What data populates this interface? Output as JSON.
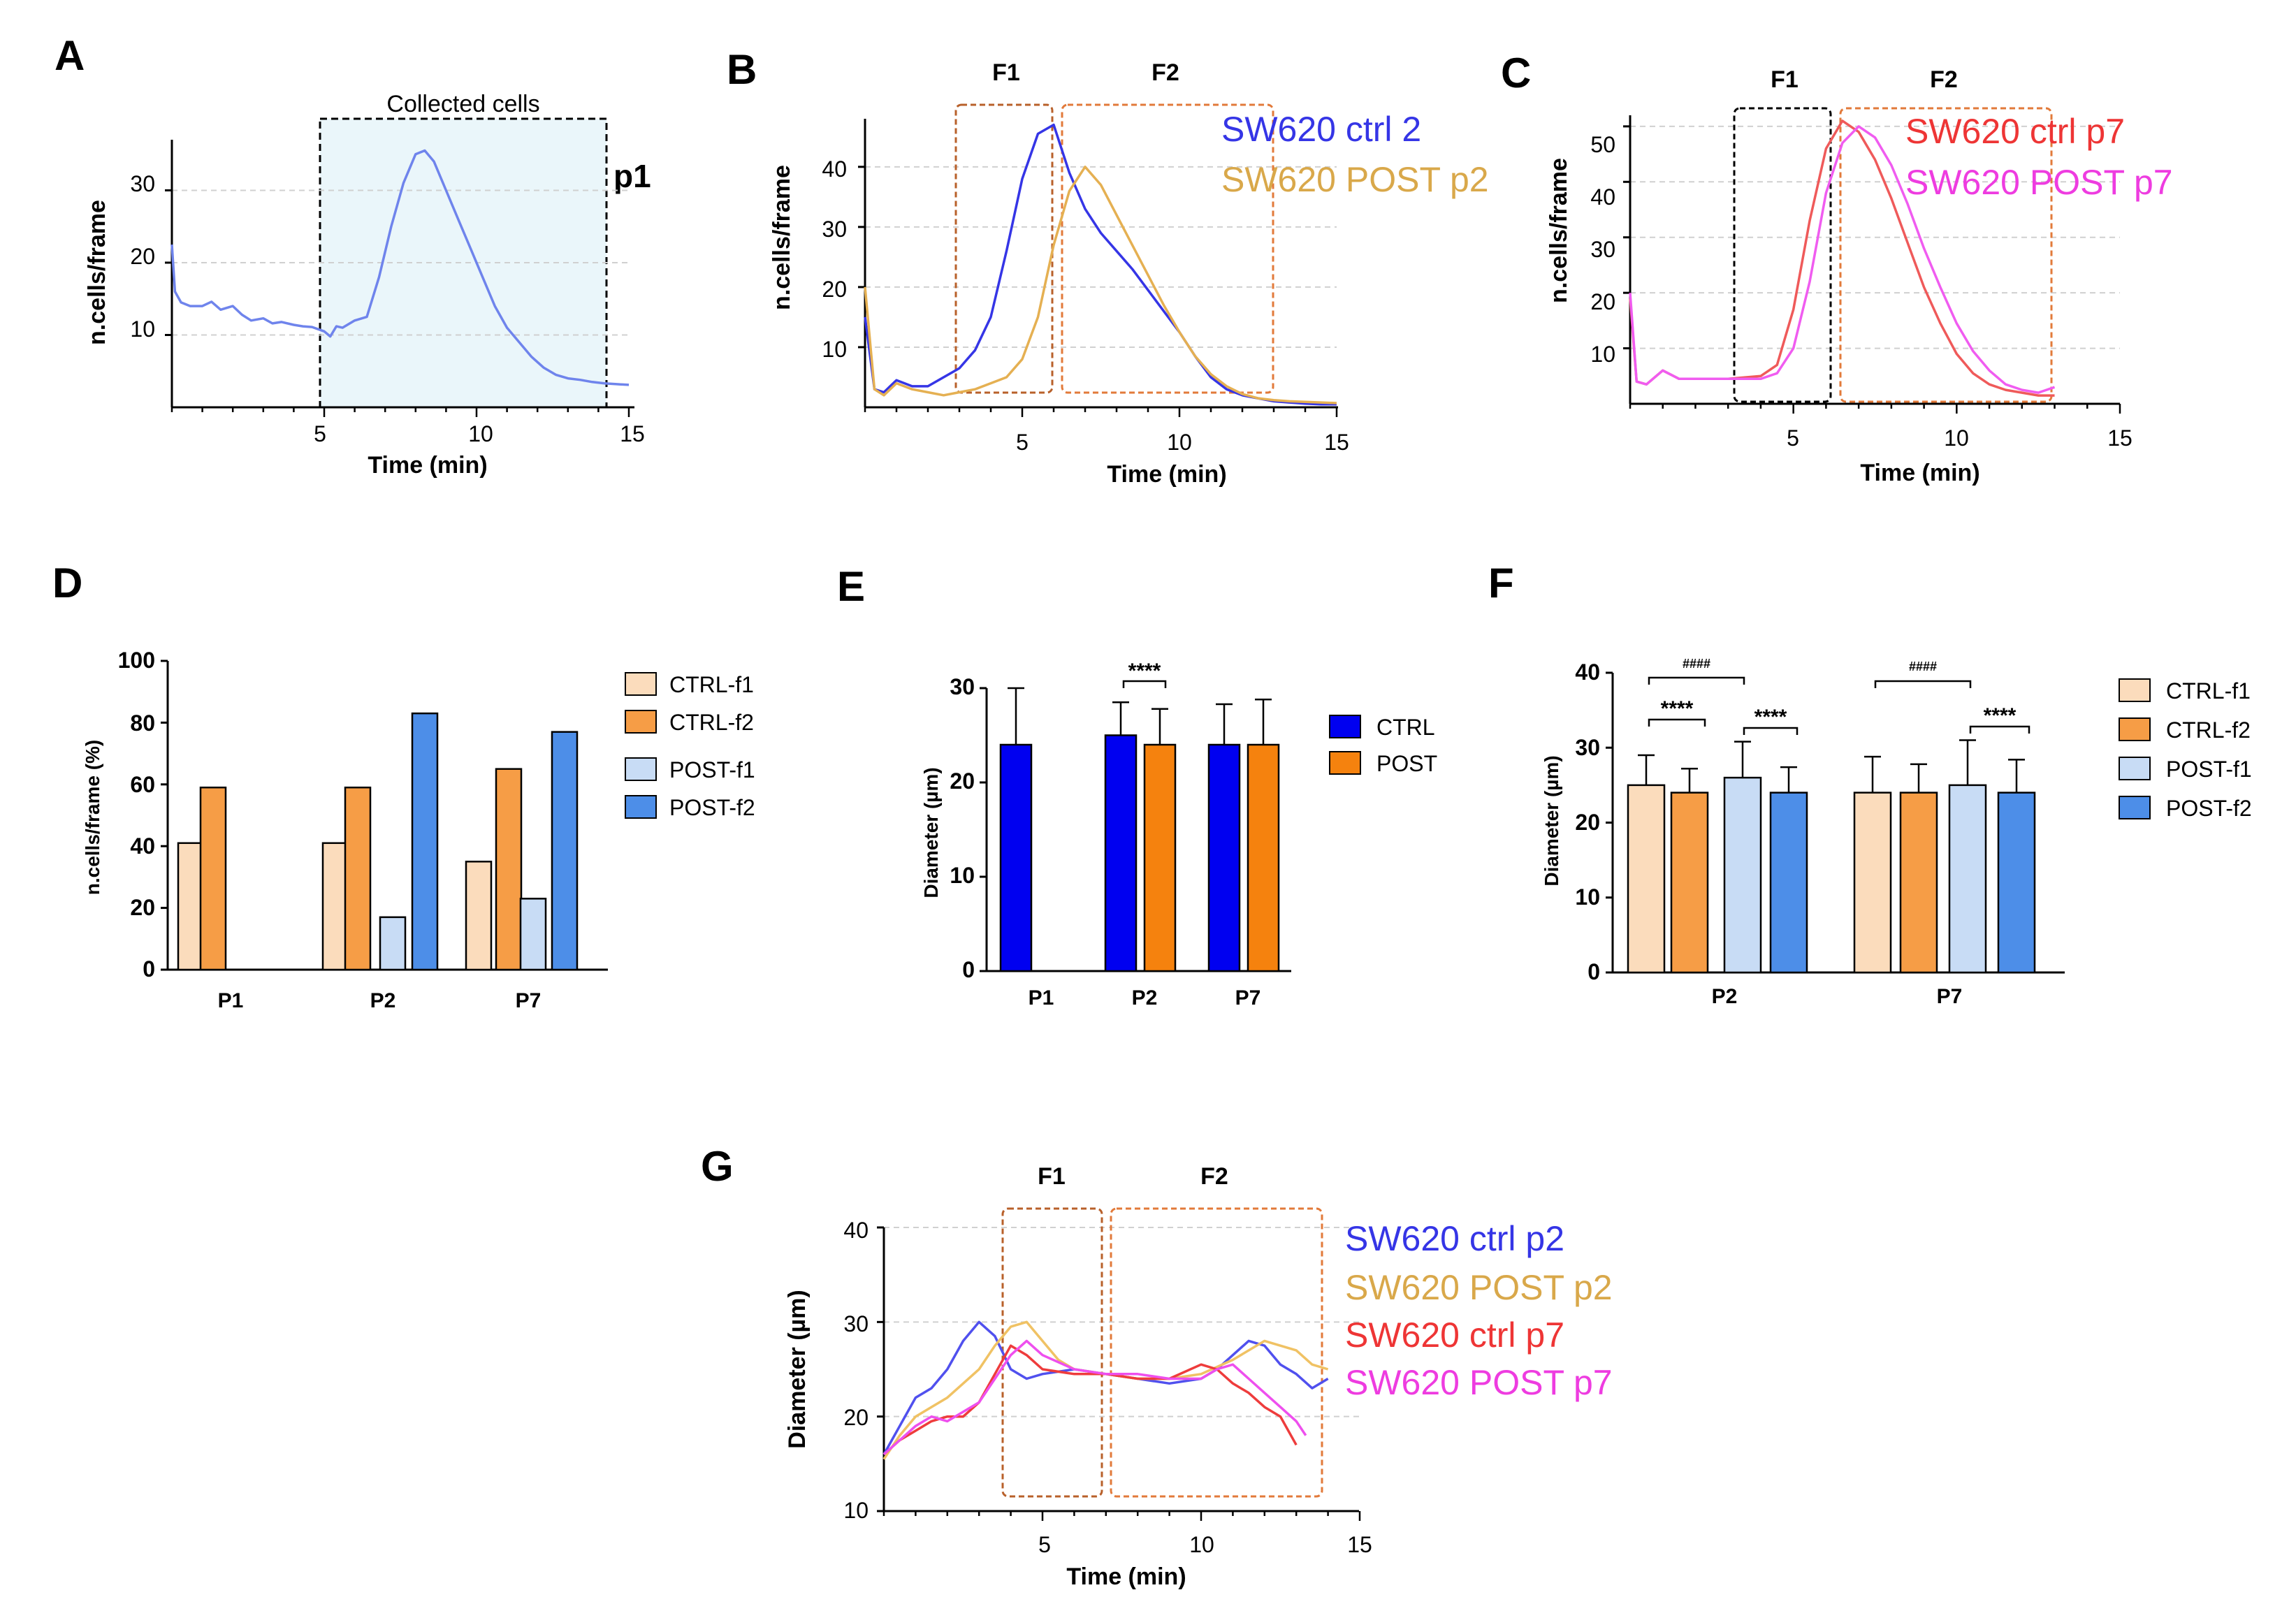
{
  "figure": {
    "panel_labels": [
      "A",
      "B",
      "C",
      "D",
      "E",
      "F",
      "G"
    ]
  },
  "chart_data": [
    {
      "panel": "A",
      "type": "line",
      "xlabel": "Time (min)",
      "ylabel": "n.cells/frame",
      "xlim": [
        0,
        15
      ],
      "ylim": [
        0,
        37
      ],
      "xticks": [
        "5",
        "10",
        "15"
      ],
      "yticks": [
        "10",
        "20",
        "30"
      ],
      "grid": true,
      "annotation": "Collected cells",
      "annotation_label": "p1",
      "region": [
        5,
        14.3
      ],
      "series": [
        {
          "name": "p1",
          "color": "#6f84ec",
          "x": [
            0,
            0.1,
            0.3,
            0.6,
            1.0,
            1.3,
            1.6,
            2.0,
            2.3,
            2.6,
            3.0,
            3.3,
            3.6,
            4.0,
            4.3,
            4.6,
            5.0,
            5.2,
            5.4,
            5.6,
            6.0,
            6.4,
            6.8,
            7.2,
            7.6,
            8.0,
            8.3,
            8.6,
            9.0,
            9.4,
            9.8,
            10.2,
            10.6,
            11.0,
            11.4,
            11.8,
            12.2,
            12.6,
            13.0,
            13.4,
            13.8,
            14.2,
            14.6,
            15.0
          ],
          "y": [
            22.5,
            16,
            14.5,
            14,
            14,
            14.6,
            13.5,
            14,
            12.8,
            12,
            12.3,
            11.6,
            11.8,
            11.4,
            11.2,
            11.1,
            10.5,
            9.8,
            11.2,
            11,
            12,
            12.5,
            18,
            25,
            31,
            35,
            35.5,
            34,
            30,
            26,
            22,
            18,
            14,
            11,
            9,
            7,
            5.5,
            4.5,
            4,
            3.8,
            3.5,
            3.3,
            3.2,
            3.1
          ]
        }
      ]
    },
    {
      "panel": "B",
      "type": "line",
      "xlabel": "Time (min)",
      "ylabel": "n.cells/frame",
      "xlim": [
        0,
        15
      ],
      "ylim": [
        0,
        48
      ],
      "xticks": [
        "5",
        "10",
        "15"
      ],
      "yticks": [
        "10",
        "20",
        "30",
        "40"
      ],
      "grid": true,
      "fractions": [
        "F1",
        "F2"
      ],
      "series": [
        {
          "name": "SW620 ctrl 2",
          "color": "#3535e6",
          "x": [
            0,
            0.3,
            0.6,
            1.0,
            1.5,
            2.0,
            2.5,
            3.0,
            3.5,
            4.0,
            4.5,
            5.0,
            5.5,
            6.0,
            6.5,
            7.0,
            7.5,
            8.0,
            8.5,
            9.0,
            9.5,
            10.0,
            10.5,
            11.0,
            11.5,
            12.0,
            12.5,
            13.0,
            13.5,
            14.0,
            14.5,
            15.0
          ],
          "y": [
            15,
            3,
            2.5,
            4.5,
            3.5,
            3.5,
            5,
            6.5,
            9.5,
            15,
            26,
            38,
            45.5,
            47,
            39,
            33,
            29,
            26,
            23,
            19.5,
            16,
            12.5,
            8.5,
            5,
            3,
            2,
            1.5,
            1,
            0.8,
            0.6,
            0.5,
            0.5
          ]
        },
        {
          "name": "SW620 POST p2",
          "color": "#e5b052",
          "x": [
            0,
            0.3,
            0.6,
            1.0,
            1.5,
            2.0,
            2.5,
            3.0,
            3.5,
            4.0,
            4.5,
            5.0,
            5.5,
            6.0,
            6.5,
            7.0,
            7.5,
            8.0,
            8.5,
            9.0,
            9.5,
            10.0,
            10.5,
            11.0,
            11.5,
            12.0,
            12.5,
            13.0,
            13.5,
            14.0,
            14.5,
            15.0
          ],
          "y": [
            20,
            3,
            2,
            4,
            3,
            2.5,
            2,
            2.5,
            3,
            4,
            5,
            8,
            15,
            27,
            36,
            40,
            37,
            32,
            27,
            22,
            17,
            12.5,
            8.5,
            5.5,
            3.5,
            2.2,
            1.5,
            1.2,
            1,
            0.9,
            0.8,
            0.7
          ]
        }
      ]
    },
    {
      "panel": "C",
      "type": "line",
      "xlabel": "Time (min)",
      "ylabel": "n.cells/frame",
      "xlim": [
        0,
        15
      ],
      "ylim": [
        0,
        52
      ],
      "xticks": [
        "5",
        "10",
        "15"
      ],
      "yticks": [
        "10",
        "20",
        "30",
        "40",
        "50"
      ],
      "grid": true,
      "fractions": [
        "F1",
        "F2"
      ],
      "series": [
        {
          "name": "SW620 ctrl p7",
          "color": "#ef5a5a",
          "x": [
            0,
            0.2,
            0.5,
            1.0,
            1.5,
            2.0,
            3.0,
            4.0,
            4.5,
            5.0,
            5.5,
            6.0,
            6.5,
            7.0,
            7.5,
            8.0,
            8.5,
            9.0,
            9.5,
            10.0,
            10.5,
            11.0,
            11.5,
            12.0,
            12.5,
            13.0
          ],
          "y": [
            19,
            4,
            3.5,
            6,
            4.5,
            4.5,
            4.5,
            5,
            7,
            17,
            33,
            46,
            51,
            49,
            44,
            37,
            29,
            21,
            14.5,
            9,
            5.5,
            3.5,
            2.5,
            2,
            1.5,
            1.5
          ]
        },
        {
          "name": "SW620 POST p7",
          "color": "#f05cf0",
          "x": [
            0,
            0.2,
            0.5,
            1.0,
            1.5,
            2.0,
            3.0,
            4.0,
            4.5,
            5.0,
            5.5,
            6.0,
            6.5,
            7.0,
            7.5,
            8.0,
            8.5,
            9.0,
            9.5,
            10.0,
            10.5,
            11.0,
            11.5,
            12.0,
            12.5,
            13.0
          ],
          "y": [
            20,
            4,
            3.5,
            6,
            4.5,
            4.5,
            4.5,
            4.5,
            5.5,
            10,
            22,
            38,
            47,
            50,
            48,
            43,
            36,
            28,
            21,
            14.5,
            9.5,
            6,
            3.5,
            2.5,
            2,
            3
          ]
        }
      ]
    },
    {
      "panel": "D",
      "type": "bar",
      "xlabel": "",
      "ylabel": "n.cells/frame (%)",
      "ylim": [
        0,
        100
      ],
      "yticks": [
        "0",
        "20",
        "40",
        "60",
        "80",
        "100"
      ],
      "categories": [
        "P1",
        "P2",
        "P7"
      ],
      "series": [
        {
          "name": "CTRL-f1",
          "color": "#fbdcbc",
          "values": [
            41,
            41,
            35
          ]
        },
        {
          "name": "CTRL-f2",
          "color": "#f69d46",
          "values": [
            59,
            59,
            65
          ]
        },
        {
          "name": "POST-f1",
          "color": "#c8dcf5",
          "values": [
            null,
            17,
            23
          ]
        },
        {
          "name": "POST-f2",
          "color": "#4d8ee8",
          "values": [
            null,
            83,
            77
          ]
        }
      ]
    },
    {
      "panel": "E",
      "type": "bar",
      "xlabel": "",
      "ylabel": "Diameter (µm)",
      "ylim": [
        0,
        30
      ],
      "yticks": [
        "0",
        "10",
        "20",
        "30"
      ],
      "categories": [
        "P1",
        "P2",
        "P7"
      ],
      "significance": "****",
      "series": [
        {
          "name": "CTRL",
          "color": "#0000f0",
          "values": [
            24,
            25,
            24
          ],
          "errors": [
            6,
            3.5,
            4.3
          ]
        },
        {
          "name": "POST",
          "color": "#f5820e",
          "values": [
            null,
            24,
            24
          ],
          "errors": [
            null,
            3.8,
            4.8
          ]
        }
      ]
    },
    {
      "panel": "F",
      "type": "bar",
      "xlabel": "",
      "ylabel": "Diameter (µm)",
      "ylim": [
        0,
        40
      ],
      "yticks": [
        "0",
        "10",
        "20",
        "30",
        "40"
      ],
      "categories": [
        "P2",
        "P7"
      ],
      "significance": [
        "****",
        "****",
        "####",
        "****",
        "####"
      ],
      "series": [
        {
          "name": "CTRL-f1",
          "color": "#fbdcbc",
          "values": [
            25,
            24
          ],
          "errors": [
            4,
            4.8
          ]
        },
        {
          "name": "CTRL-f2",
          "color": "#f69d46",
          "values": [
            24,
            24
          ],
          "errors": [
            3.2,
            3.8
          ]
        },
        {
          "name": "POST-f1",
          "color": "#c8dcf5",
          "values": [
            26,
            25
          ],
          "errors": [
            4.8,
            6
          ]
        },
        {
          "name": "POST-f2",
          "color": "#4d8ee8",
          "values": [
            24,
            24
          ],
          "errors": [
            3.4,
            4.4
          ]
        }
      ]
    },
    {
      "panel": "G",
      "type": "line",
      "xlabel": "Time (min)",
      "ylabel": "Diameter (µm)",
      "xlim": [
        0,
        15
      ],
      "ylim": [
        10,
        40
      ],
      "xticks": [
        "5",
        "10",
        "15"
      ],
      "yticks": [
        "10",
        "20",
        "30",
        "40"
      ],
      "grid": true,
      "fractions": [
        "F1",
        "F2"
      ],
      "series": [
        {
          "name": "SW620 ctrl p2",
          "color": "#5050ee",
          "x": [
            0,
            0.5,
            1.0,
            1.5,
            2.0,
            2.5,
            3.0,
            3.5,
            4.0,
            4.5,
            5.0,
            6.0,
            7.0,
            8.0,
            9.0,
            10.0,
            10.5,
            11.0,
            11.5,
            12.0,
            12.5,
            13.0,
            13.5,
            14.0
          ],
          "y": [
            16,
            19,
            22,
            23,
            25,
            28,
            30,
            28.5,
            25,
            24,
            24.5,
            25,
            24.5,
            24,
            23.5,
            24,
            25,
            26.5,
            28,
            27.5,
            25.5,
            24.5,
            23,
            24
          ]
        },
        {
          "name": "SW620 POST p2",
          "color": "#f0c264",
          "x": [
            0,
            0.5,
            1.0,
            1.5,
            2.0,
            2.5,
            3.0,
            3.5,
            4.0,
            4.5,
            5.0,
            5.5,
            6.0,
            7.0,
            8.0,
            9.0,
            10.0,
            11.0,
            12.0,
            12.5,
            13.0,
            13.5,
            14.0
          ],
          "y": [
            15.5,
            18,
            20,
            21,
            22,
            23.5,
            25,
            27.5,
            29.5,
            30,
            28,
            26,
            25,
            24.5,
            24,
            24,
            24.5,
            26,
            28,
            27.5,
            27,
            25.5,
            25
          ]
        },
        {
          "name": "SW620 ctrl p7",
          "color": "#ee3c3c",
          "x": [
            0,
            0.5,
            1.0,
            1.5,
            2.0,
            2.5,
            3.0,
            3.5,
            4.0,
            4.5,
            5.0,
            6.0,
            7.0,
            8.0,
            9.0,
            10.0,
            10.5,
            11.0,
            11.5,
            12.0,
            12.5,
            13.0
          ],
          "y": [
            16,
            17.5,
            18.5,
            19.5,
            20,
            20,
            21.5,
            24.5,
            27.5,
            26.5,
            25,
            24.5,
            24.5,
            24,
            24,
            25.5,
            25,
            23.5,
            22.5,
            21,
            20,
            17
          ]
        },
        {
          "name": "SW620 POST p7",
          "color": "#ee4fee",
          "x": [
            0,
            0.5,
            1.0,
            1.5,
            2.0,
            2.5,
            3.0,
            3.5,
            4.0,
            4.5,
            5.0,
            6.0,
            7.0,
            8.0,
            9.0,
            10.0,
            10.5,
            11.0,
            11.5,
            12.0,
            12.5,
            13.0,
            13.3
          ],
          "y": [
            16,
            17.5,
            19,
            20,
            19.5,
            20.5,
            21.5,
            24,
            26.5,
            28,
            26.5,
            25,
            24.5,
            24.5,
            24,
            24,
            25,
            25.5,
            24,
            22.5,
            21,
            19.5,
            18
          ]
        }
      ]
    }
  ]
}
